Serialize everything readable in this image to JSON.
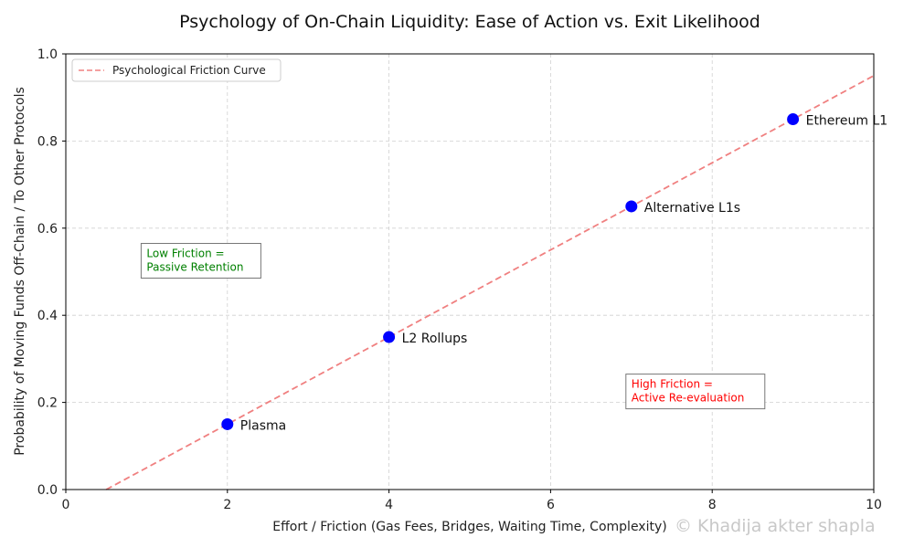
{
  "chart_data": {
    "type": "scatter",
    "title": "Psychology of On-Chain Liquidity: Ease of Action vs. Exit Likelihood",
    "xlabel": "Effort / Friction (Gas Fees, Bridges, Waiting Time, Complexity)",
    "ylabel": "Probability of Moving Funds Off-Chain / To Other Protocols",
    "xlim": [
      0,
      10
    ],
    "ylim": [
      0,
      1.0
    ],
    "xticks": [
      0,
      2,
      4,
      6,
      8,
      10
    ],
    "xtick_labels": [
      "0",
      "2",
      "4",
      "6",
      "8",
      "10"
    ],
    "yticks": [
      0,
      0.2,
      0.4,
      0.6,
      0.8,
      1.0
    ],
    "ytick_labels": [
      "0.0",
      "0.2",
      "0.4",
      "0.6",
      "0.8",
      "1.0"
    ],
    "grid": true,
    "legend": {
      "placement": "top-left",
      "entries": [
        {
          "label": "Psychological Friction Curve",
          "style": "dashed",
          "color": "#f08080"
        }
      ]
    },
    "series": [
      {
        "name": "Psychological Friction Curve",
        "type": "line",
        "style": "dashed",
        "color": "#f08080",
        "x": [
          0.5,
          10
        ],
        "y": [
          0.0,
          0.95
        ]
      },
      {
        "name": "Protocols",
        "type": "scatter",
        "color": "#0000ff",
        "points": [
          {
            "label": "Plasma",
            "x": 2,
            "y": 0.15
          },
          {
            "label": "L2 Rollups",
            "x": 4,
            "y": 0.35
          },
          {
            "label": "Alternative L1s",
            "x": 7,
            "y": 0.65
          },
          {
            "label": "Ethereum L1",
            "x": 9,
            "y": 0.85
          }
        ]
      }
    ],
    "annotations": [
      {
        "lines": [
          "Low Friction =",
          "Passive Retention"
        ],
        "x": 1.0,
        "y": 0.5,
        "color": "#008000"
      },
      {
        "lines": [
          "High Friction =",
          "Active Re-evaluation"
        ],
        "x": 7.0,
        "y": 0.2,
        "color": "#ff0000"
      }
    ]
  },
  "watermark": "© Khadija akter shapla"
}
